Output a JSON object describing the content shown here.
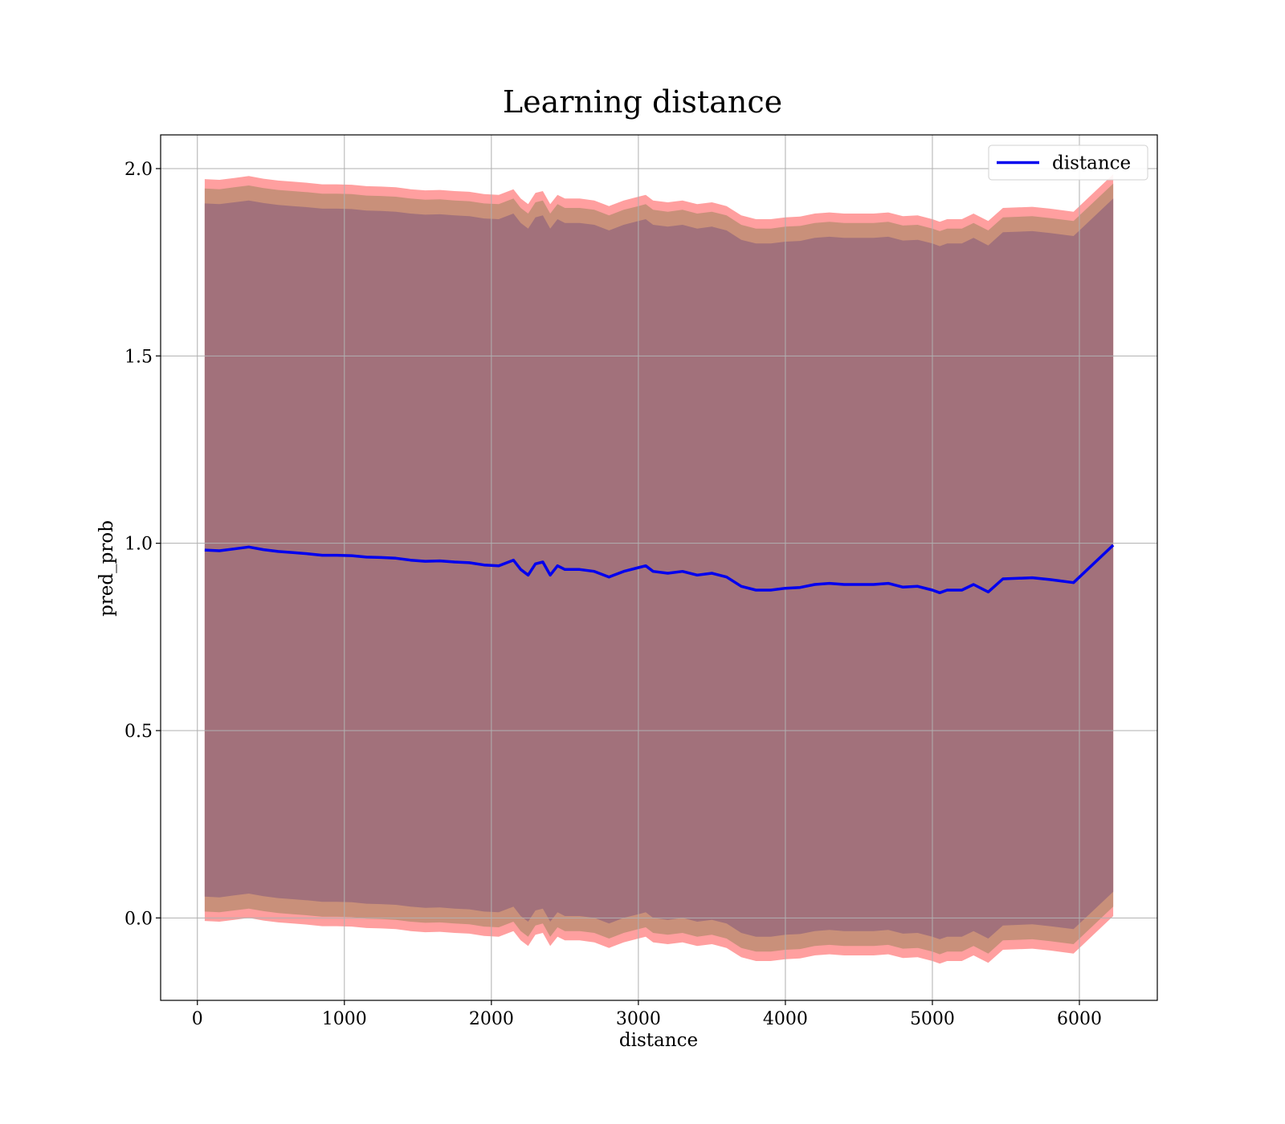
{
  "chart_data": {
    "type": "line",
    "title": "Learning distance",
    "xlabel": "distance",
    "ylabel": "pred_prob",
    "xlim": [
      -250,
      6530
    ],
    "ylim": [
      -0.22,
      2.09
    ],
    "xticks": [
      0,
      1000,
      2000,
      3000,
      4000,
      5000,
      6000
    ],
    "xtick_labels": [
      "0",
      "1000",
      "2000",
      "3000",
      "4000",
      "5000",
      "6000"
    ],
    "yticks": [
      0.0,
      0.5,
      1.0,
      1.5,
      2.0
    ],
    "ytick_labels": [
      "0.0",
      "0.5",
      "1.0",
      "1.5",
      "2.0"
    ],
    "grid": true,
    "legend_position": "top-right",
    "colors": {
      "line": "#0000ee",
      "band_outer": "#ff9f9f",
      "band_middle": "#c9907a",
      "band_inner": "#a2717b"
    },
    "series": [
      {
        "name": "distance",
        "x": [
          50,
          150,
          250,
          350,
          450,
          550,
          650,
          750,
          850,
          950,
          1050,
          1150,
          1250,
          1350,
          1450,
          1550,
          1650,
          1750,
          1850,
          1950,
          2050,
          2150,
          2200,
          2250,
          2300,
          2350,
          2400,
          2450,
          2500,
          2600,
          2700,
          2800,
          2900,
          3000,
          3050,
          3100,
          3200,
          3300,
          3400,
          3500,
          3600,
          3700,
          3800,
          3900,
          4000,
          4100,
          4200,
          4300,
          4400,
          4500,
          4600,
          4700,
          4800,
          4900,
          5000,
          5050,
          5100,
          5200,
          5280,
          5380,
          5480,
          5680,
          5800,
          5960,
          6230
        ],
        "y": [
          0.982,
          0.98,
          0.985,
          0.99,
          0.983,
          0.978,
          0.975,
          0.972,
          0.968,
          0.968,
          0.967,
          0.963,
          0.962,
          0.96,
          0.955,
          0.952,
          0.953,
          0.95,
          0.948,
          0.942,
          0.94,
          0.955,
          0.93,
          0.915,
          0.945,
          0.95,
          0.915,
          0.94,
          0.93,
          0.93,
          0.925,
          0.91,
          0.925,
          0.935,
          0.94,
          0.925,
          0.92,
          0.925,
          0.915,
          0.92,
          0.91,
          0.885,
          0.875,
          0.875,
          0.88,
          0.882,
          0.89,
          0.893,
          0.89,
          0.89,
          0.89,
          0.893,
          0.883,
          0.885,
          0.875,
          0.868,
          0.875,
          0.875,
          0.89,
          0.87,
          0.905,
          0.908,
          0.903,
          0.895,
          0.995
        ]
      }
    ],
    "bands": [
      {
        "offset_upper": 0.99,
        "offset_lower": 0.99
      },
      {
        "offset_upper": 0.965,
        "offset_lower": 0.965
      },
      {
        "offset_upper": 0.925,
        "offset_lower": 0.925
      }
    ]
  }
}
